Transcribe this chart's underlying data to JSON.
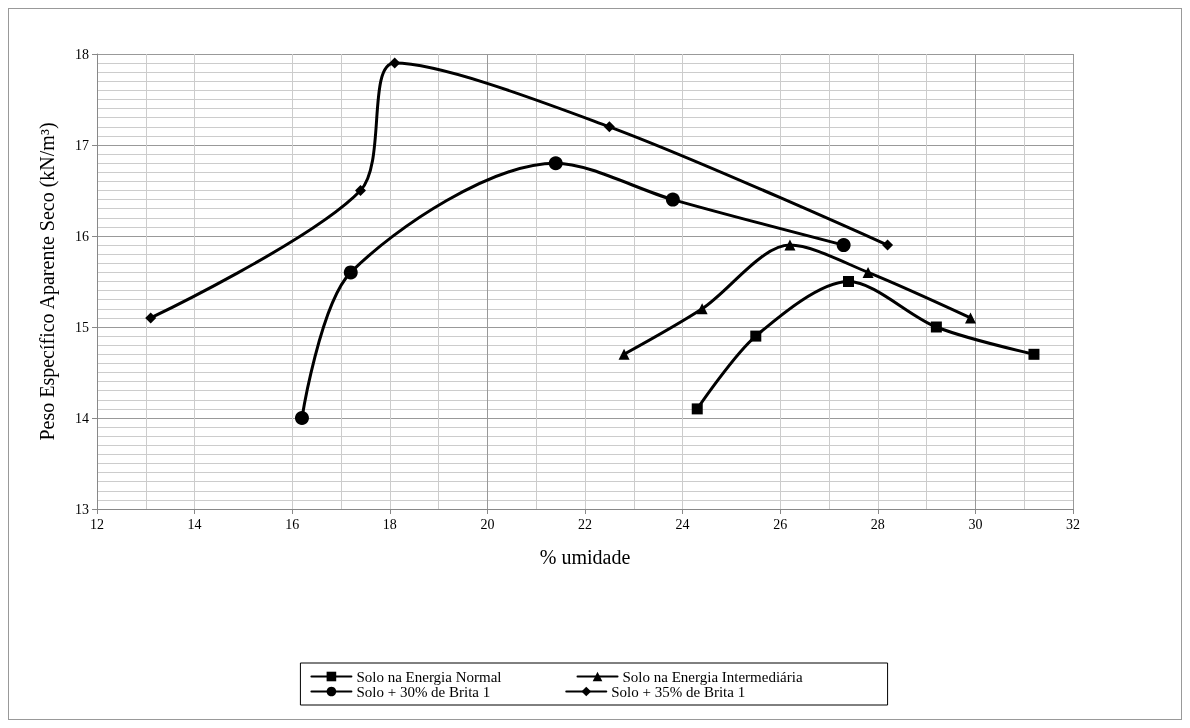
{
  "chart_data": {
    "type": "line",
    "xlabel": "% umidade",
    "ylabel": "Peso Específico Aparente Seco (kN/m³)",
    "xlim": [
      12,
      32
    ],
    "xticks": [
      12,
      14,
      16,
      18,
      20,
      22,
      24,
      26,
      28,
      30,
      32
    ],
    "ylim": [
      13,
      18
    ],
    "yticks": [
      13,
      14,
      15,
      16,
      17,
      18
    ],
    "grid": true,
    "legend": "bottom",
    "series": [
      {
        "name": "Solo na Energia Normal",
        "color": "#000000",
        "marker": "square",
        "x": [
          24.3,
          25.5,
          27.4,
          29.2,
          31.2
        ],
        "values": [
          14.1,
          14.9,
          15.5,
          15.0,
          14.7
        ]
      },
      {
        "name": "Solo na Energia Intermediária",
        "color": "#000000",
        "marker": "triangle",
        "x": [
          22.8,
          24.4,
          26.2,
          27.8,
          29.9
        ],
        "values": [
          14.7,
          15.2,
          15.9,
          15.6,
          15.1
        ]
      },
      {
        "name": "Solo + 30% de Brita 1",
        "color": "#000000",
        "marker": "circle",
        "x": [
          16.2,
          17.2,
          21.4,
          23.8,
          27.3
        ],
        "values": [
          14.0,
          15.6,
          16.8,
          16.4,
          15.9
        ]
      },
      {
        "name": "Solo + 35% de Brita 1",
        "color": "#000000",
        "marker": "diamond",
        "x": [
          13.1,
          17.4,
          18.1,
          22.5,
          28.2
        ],
        "values": [
          15.1,
          16.5,
          17.9,
          17.2,
          15.9
        ]
      }
    ]
  }
}
